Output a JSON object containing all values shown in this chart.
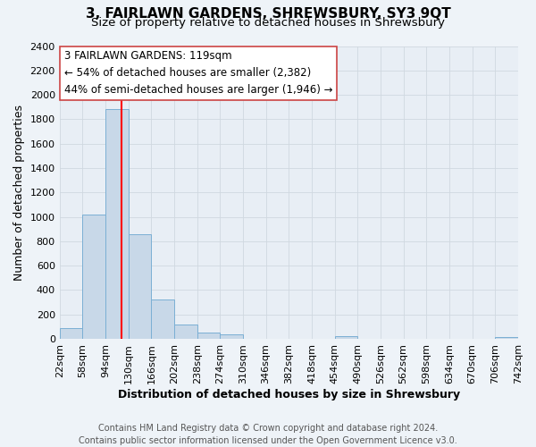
{
  "title": "3, FAIRLAWN GARDENS, SHREWSBURY, SY3 9QT",
  "subtitle": "Size of property relative to detached houses in Shrewsbury",
  "xlabel": "Distribution of detached houses by size in Shrewsbury",
  "ylabel": "Number of detached properties",
  "footer_line1": "Contains HM Land Registry data © Crown copyright and database right 2024.",
  "footer_line2": "Contains public sector information licensed under the Open Government Licence v3.0.",
  "bin_edges": [
    22,
    58,
    94,
    130,
    166,
    202,
    238,
    274,
    310,
    346,
    382,
    418,
    454,
    490,
    526,
    562,
    598,
    634,
    670,
    706,
    742
  ],
  "bin_labels": [
    "22sqm",
    "58sqm",
    "94sqm",
    "130sqm",
    "166sqm",
    "202sqm",
    "238sqm",
    "274sqm",
    "310sqm",
    "346sqm",
    "382sqm",
    "418sqm",
    "454sqm",
    "490sqm",
    "526sqm",
    "562sqm",
    "598sqm",
    "634sqm",
    "670sqm",
    "706sqm",
    "742sqm"
  ],
  "bar_heights": [
    90,
    1020,
    1880,
    860,
    320,
    115,
    50,
    35,
    0,
    0,
    0,
    0,
    20,
    0,
    0,
    0,
    0,
    0,
    0,
    15
  ],
  "bar_color": "#c8d8e8",
  "bar_edge_color": "#7bafd4",
  "vline_color": "red",
  "vline_x": 119,
  "annotation_title": "3 FAIRLAWN GARDENS: 119sqm",
  "annotation_line2": "← 54% of detached houses are smaller (2,382)",
  "annotation_line3": "44% of semi-detached houses are larger (1,946) →",
  "annotation_box_facecolor": "white",
  "annotation_box_edgecolor": "#cc4444",
  "ylim": [
    0,
    2400
  ],
  "yticks": [
    0,
    200,
    400,
    600,
    800,
    1000,
    1200,
    1400,
    1600,
    1800,
    2000,
    2200,
    2400
  ],
  "background_color": "#eef3f8",
  "plot_background_color": "#e8eef5",
  "grid_color": "#d0d8e0",
  "title_fontsize": 11,
  "subtitle_fontsize": 9.5,
  "axis_label_fontsize": 9,
  "tick_fontsize": 8,
  "annotation_fontsize": 8.5,
  "footer_fontsize": 7
}
